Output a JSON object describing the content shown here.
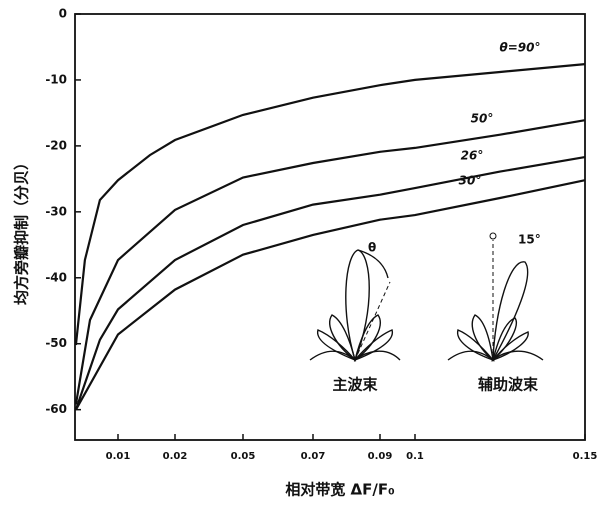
{
  "chart_data": {
    "type": "line",
    "y_label": "均方旁瓣抑制（分贝）",
    "x_label": "相对带宽 ΔF/F₀",
    "xlim": [
      0,
      0.15
    ],
    "ylim": [
      -64.6,
      0
    ],
    "xticks": [
      0.01,
      0.02,
      0.05,
      0.07,
      0.09,
      0.1,
      0.15
    ],
    "yticks": [
      0,
      -10,
      -20,
      -30,
      -40,
      -50,
      -60
    ],
    "series": [
      {
        "name": "θ=90°",
        "color": "#111111",
        "x": [
          0.0002,
          0.0023,
          0.0058,
          0.01,
          0.0156,
          0.02,
          0.05,
          0.07,
          0.09,
          0.1,
          0.125,
          0.15
        ],
        "values": [
          -50.2,
          -37.3,
          -28.2,
          -25.2,
          -21.4,
          -19.1,
          -15.3,
          -12.7,
          -10.8,
          -10,
          -8.8,
          -7.6
        ]
      },
      {
        "name": "50°",
        "color": "#111111",
        "x": [
          0.0002,
          0.0035,
          0.01,
          0.02,
          0.05,
          0.07,
          0.09,
          0.1,
          0.125,
          0.15
        ],
        "values": [
          -59.2,
          -46.4,
          -37.3,
          -29.7,
          -24.8,
          -22.6,
          -20.9,
          -20.3,
          -18.3,
          -16.1
        ]
      },
      {
        "name": "26°",
        "color": "#111111",
        "x": [
          0.0002,
          0.0058,
          0.01,
          0.02,
          0.05,
          0.07,
          0.09,
          0.1,
          0.125,
          0.15
        ],
        "values": [
          -60,
          -49.4,
          -44.8,
          -37.3,
          -32,
          -28.9,
          -27.4,
          -26.4,
          -23.9,
          -21.7
        ]
      },
      {
        "name": "30°",
        "color": "#111111",
        "x": [
          0.0002,
          0.01,
          0.02,
          0.05,
          0.07,
          0.09,
          0.1,
          0.125,
          0.15
        ],
        "values": [
          -60,
          -48.6,
          -41.8,
          -36.5,
          -33.5,
          -31.2,
          -30.5,
          -27.9,
          -25.2
        ]
      }
    ],
    "annotations": [
      "主波束",
      "辅助波束",
      "θ",
      "15°"
    ]
  }
}
